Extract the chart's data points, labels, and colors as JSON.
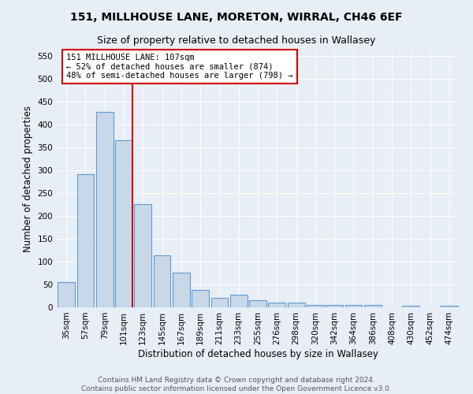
{
  "title": "151, MILLHOUSE LANE, MORETON, WIRRAL, CH46 6EF",
  "subtitle": "Size of property relative to detached houses in Wallasey",
  "xlabel": "Distribution of detached houses by size in Wallasey",
  "ylabel": "Number of detached properties",
  "bar_labels": [
    "35sqm",
    "57sqm",
    "79sqm",
    "101sqm",
    "123sqm",
    "145sqm",
    "167sqm",
    "189sqm",
    "211sqm",
    "233sqm",
    "255sqm",
    "276sqm",
    "298sqm",
    "320sqm",
    "342sqm",
    "364sqm",
    "386sqm",
    "408sqm",
    "430sqm",
    "452sqm",
    "474sqm"
  ],
  "bar_values": [
    55,
    292,
    428,
    365,
    226,
    114,
    75,
    38,
    20,
    28,
    16,
    10,
    10,
    6,
    5,
    5,
    6,
    0,
    4,
    0,
    4
  ],
  "bar_color": "#c8d8e8",
  "bar_edge_color": "#5b9bd5",
  "vline_color": "#cc0000",
  "annotation_text": "151 MILLHOUSE LANE: 107sqm\n← 52% of detached houses are smaller (874)\n48% of semi-detached houses are larger (798) →",
  "annotation_box_color": "#ffffff",
  "annotation_box_edge": "#cc0000",
  "ylim": [
    0,
    560
  ],
  "yticks": [
    0,
    50,
    100,
    150,
    200,
    250,
    300,
    350,
    400,
    450,
    500,
    550
  ],
  "bg_color": "#e8eef6",
  "footer": "Contains HM Land Registry data © Crown copyright and database right 2024.\nContains public sector information licensed under the Open Government Licence v3.0.",
  "title_fontsize": 10,
  "subtitle_fontsize": 9,
  "axis_label_fontsize": 8.5,
  "tick_fontsize": 7.5,
  "annotation_fontsize": 7.5,
  "footer_fontsize": 6.5
}
